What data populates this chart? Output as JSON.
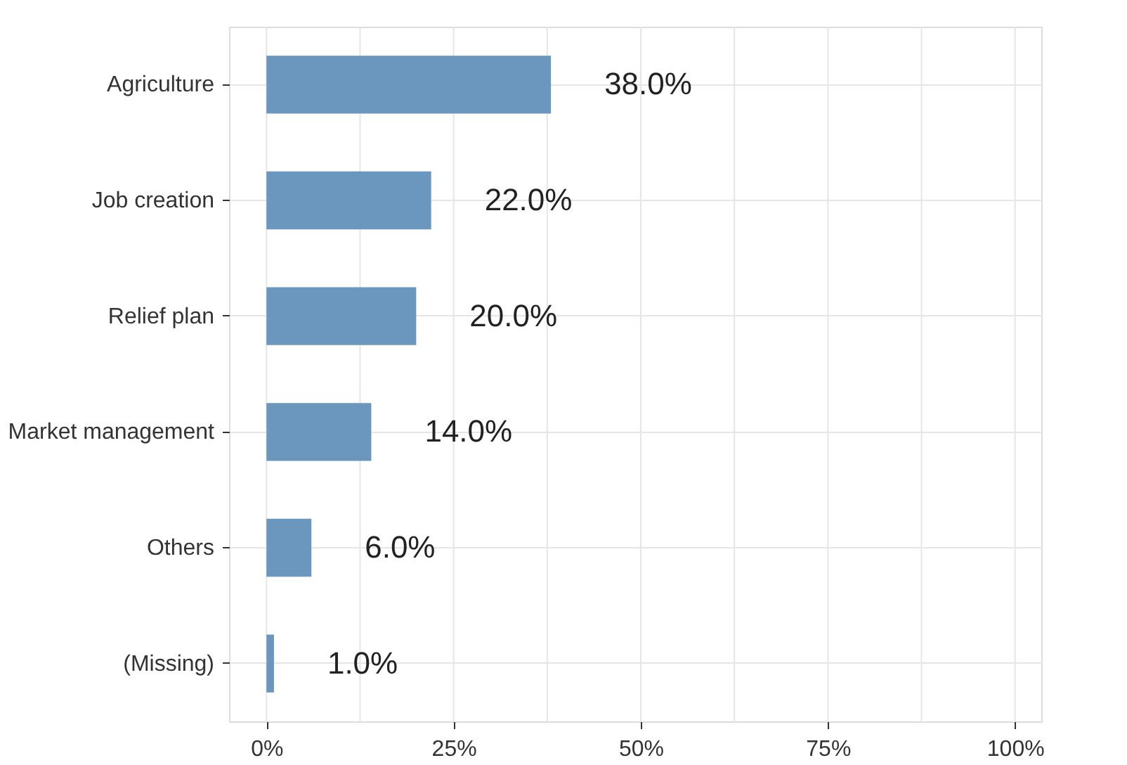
{
  "chart_data": {
    "type": "bar",
    "orientation": "horizontal",
    "categories": [
      "Agriculture",
      "Job creation",
      "Relief plan",
      "Market management",
      "Others",
      "(Missing)"
    ],
    "values": [
      38,
      22,
      20,
      14,
      6,
      1
    ],
    "value_labels": [
      "38.0%",
      "22.0%",
      "20.0%",
      "14.0%",
      "6.0%",
      "1.0%"
    ],
    "color": "#6b97bf",
    "xlim": [
      -5,
      103.5
    ],
    "xticks": [
      {
        "value": 0,
        "label": "0%"
      },
      {
        "value": 12.5,
        "label": null
      },
      {
        "value": 25,
        "label": "25%"
      },
      {
        "value": 37.5,
        "label": null
      },
      {
        "value": 50,
        "label": "50%"
      },
      {
        "value": 62.5,
        "label": null
      },
      {
        "value": 75,
        "label": "75%"
      },
      {
        "value": 87.5,
        "label": null
      },
      {
        "value": 100,
        "label": "100%"
      }
    ],
    "grid": true
  }
}
